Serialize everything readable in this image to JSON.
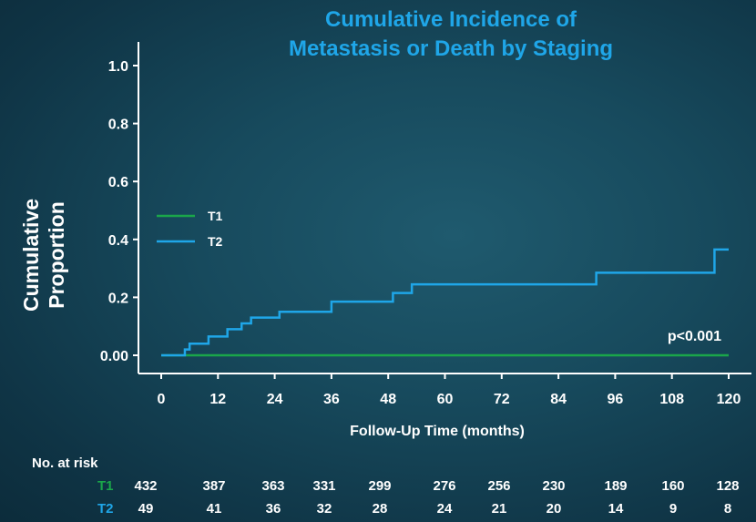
{
  "chart_data": {
    "type": "line",
    "title": "Cumulative Incidence of Metastasis or Death by Staging",
    "title_lines": [
      "Cumulative Incidence of",
      "Metastasis or Death by Staging"
    ],
    "ylabel_lines": [
      "Cumulative",
      "Proportion"
    ],
    "xlabel": "Follow-Up Time (months)",
    "x_ticks": [
      "0",
      "12",
      "24",
      "36",
      "48",
      "60",
      "72",
      "84",
      "96",
      "108",
      "120"
    ],
    "y_ticks": [
      "0.00",
      "0.2",
      "0.4",
      "0.6",
      "0.8",
      "1.0"
    ],
    "xlim": [
      0,
      120
    ],
    "ylim": [
      0,
      1.0
    ],
    "legend_position": "left, middle",
    "annotation": "p<0.001",
    "series": [
      {
        "name": "T1",
        "color": "#1aa64a",
        "x": [
          0,
          120
        ],
        "y": [
          0.0,
          0.0
        ]
      },
      {
        "name": "T2",
        "color": "#1fa6e8",
        "step": true,
        "x": [
          0,
          5,
          6,
          10,
          14,
          17,
          19,
          25,
          36,
          49,
          53,
          92,
          117,
          120
        ],
        "y": [
          0.0,
          0.02,
          0.04,
          0.065,
          0.09,
          0.11,
          0.13,
          0.15,
          0.185,
          0.215,
          0.245,
          0.285,
          0.365,
          0.365
        ]
      }
    ]
  },
  "risk_table": {
    "header": "No. at risk",
    "rows": [
      {
        "label": "T1",
        "color": "#1aa64a",
        "values": [
          "432",
          "387",
          "363",
          "331",
          "299",
          "276",
          "256",
          "230",
          "189",
          "160",
          "128"
        ]
      },
      {
        "label": "T2",
        "color": "#1fa6e8",
        "values": [
          "49",
          "41",
          "36",
          "32",
          "28",
          "24",
          "21",
          "20",
          "14",
          "9",
          "8"
        ]
      }
    ]
  }
}
